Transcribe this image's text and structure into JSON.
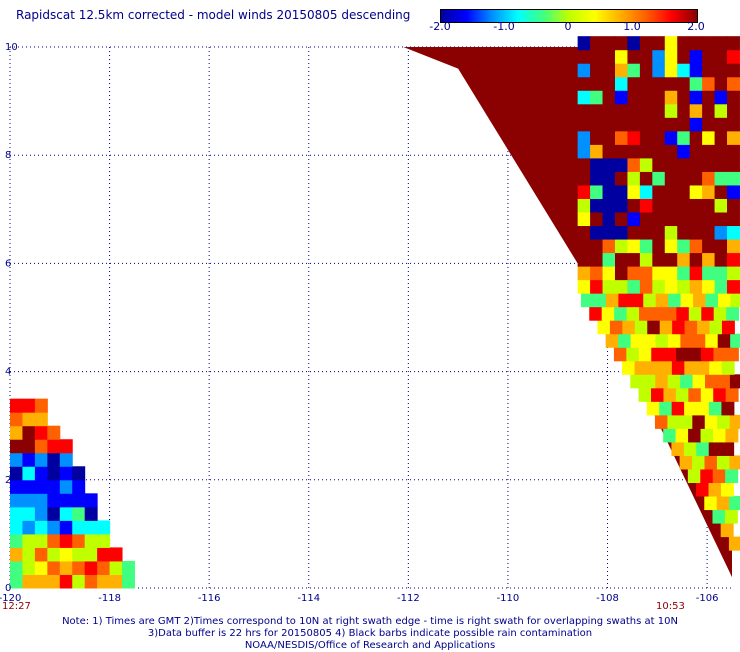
{
  "title": "Rapidscat 12.5km corrected - model winds 20150805 descending",
  "colorbar": {
    "labels": [
      "-2.0",
      "-1.0",
      "0",
      "1.0",
      "2.0"
    ],
    "values": [
      -2.0,
      -1.0,
      0,
      1.0,
      2.0
    ],
    "range": [
      -2.0,
      2.0
    ],
    "colors": [
      "#0000a0",
      "#0000ff",
      "#0090ff",
      "#00ffff",
      "#40ff80",
      "#c0ff00",
      "#ffff00",
      "#ffb000",
      "#ff6000",
      "#ff0000",
      "#8b0000"
    ]
  },
  "map": {
    "x_axis": {
      "ticks": [
        -120,
        -118,
        -116,
        -114,
        -112,
        -110,
        -108,
        -106
      ],
      "tick_labels": [
        "-120",
        "-118",
        "-116",
        "-114",
        "-112",
        "-110",
        "-108",
        "-106"
      ],
      "range": [
        -120,
        -105.5
      ]
    },
    "y_axis": {
      "ticks": [
        0,
        2,
        4,
        6,
        8,
        10
      ],
      "tick_labels": [
        "0",
        "2",
        "4",
        "6",
        "8",
        "10"
      ],
      "range": [
        0,
        10
      ]
    },
    "grid": "dotted",
    "swath_times": [
      "12:27",
      "10:53"
    ],
    "fill_color": "#8b0000"
  },
  "notes": [
    "Note: 1) Times are GMT 2)Times correspond to 10N at right swath edge - time is right swath for overlapping swaths at 10N",
    "3)Data buffer is 22 hrs for 20150805 4) Black barbs indicate possible rain contamination",
    "NOAA/NESDIS/Office of Research and Applications"
  ]
}
